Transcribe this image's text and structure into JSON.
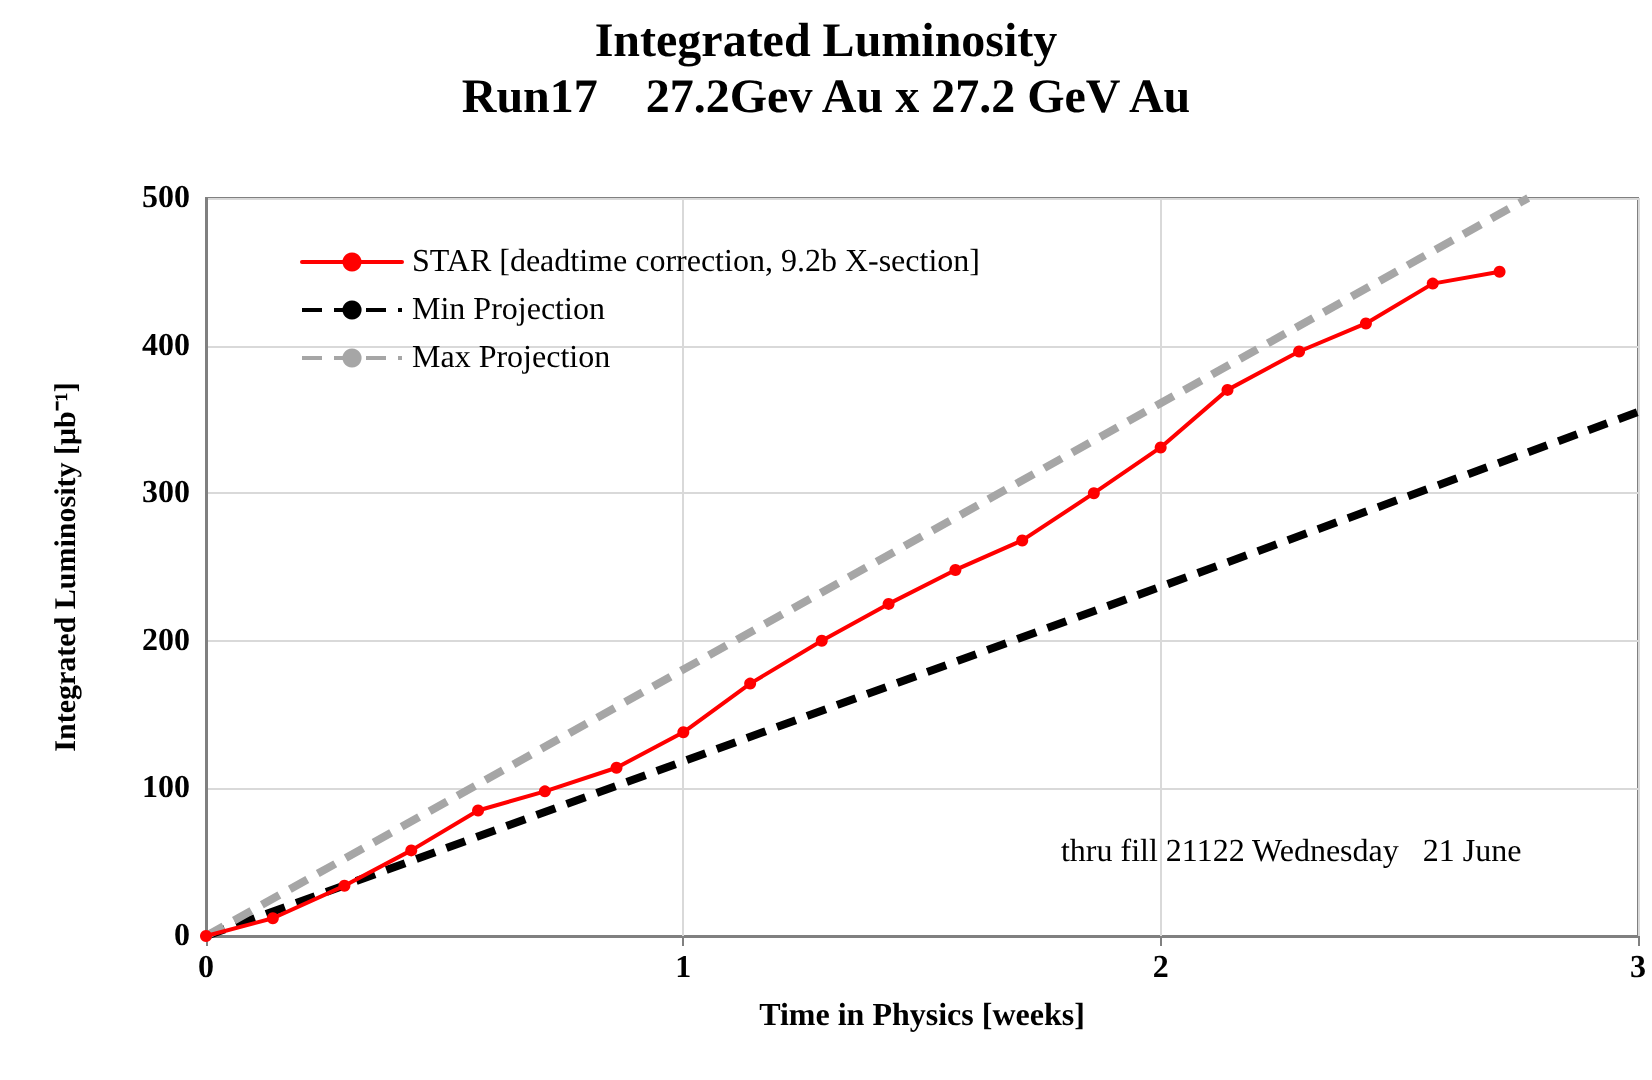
{
  "chart_data": {
    "type": "line",
    "title": "Integrated Luminosity",
    "subtitle": "Run17    27.2Gev Au x 27.2 GeV Au",
    "xlabel": "Time in Physics [weeks]",
    "ylabel": "Integrated Luminosity [μb⁻¹]",
    "xlim": [
      0,
      3
    ],
    "xticks": [
      0,
      1,
      2,
      3
    ],
    "ylim": [
      0,
      500
    ],
    "yticks": [
      0,
      100,
      200,
      300,
      400,
      500
    ],
    "grid": true,
    "legend": "top left",
    "series": [
      {
        "name": "STAR [deadtime correction, 9.2b X-section]",
        "color": "#ff0000",
        "marker": "circle",
        "line_style": "solid",
        "x": [
          0,
          0.14,
          0.29,
          0.43,
          0.57,
          0.71,
          0.86,
          1,
          1.14,
          1.29,
          1.43,
          1.57,
          1.71,
          1.86,
          2,
          2.14,
          2.29,
          2.43,
          2.57,
          2.71
        ],
        "values": [
          0,
          12,
          34,
          58,
          85,
          98,
          114,
          138,
          171,
          200,
          225,
          248,
          268,
          300,
          331,
          370,
          396,
          415,
          442,
          450
        ]
      },
      {
        "name": "Min Projection",
        "color": "#000000",
        "marker": "none",
        "line_style": "dashed",
        "x": [
          0,
          3
        ],
        "values": [
          0,
          355
        ]
      },
      {
        "name": "Max Projection",
        "color": "#a6a6a6",
        "marker": "none",
        "line_style": "dashed",
        "x": [
          0,
          2.77
        ],
        "values": [
          0,
          500
        ]
      }
    ],
    "annotations": [
      "thru fill 21122 Wednesday   21 June"
    ]
  }
}
